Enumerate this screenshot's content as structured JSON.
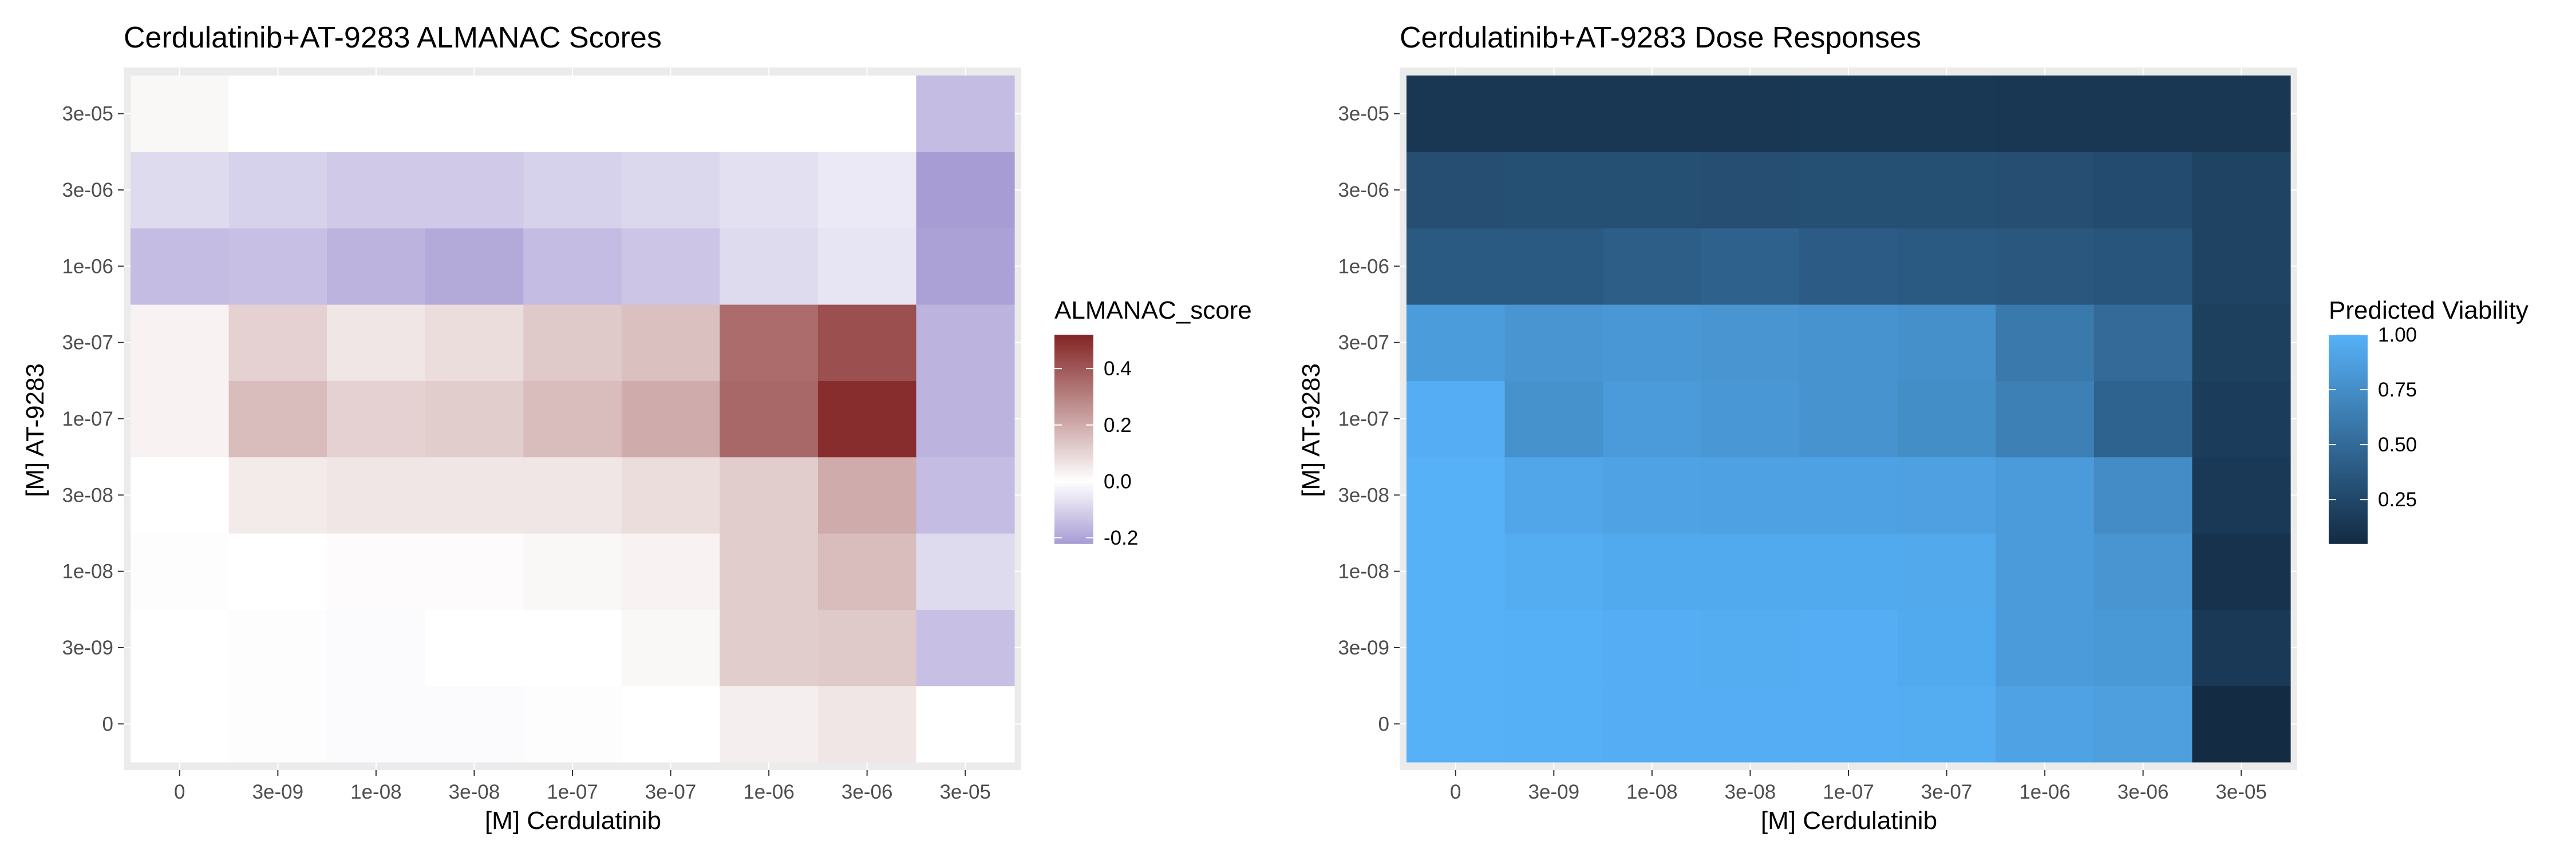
{
  "chart_data": [
    {
      "type": "heatmap",
      "title": "Cerdulatinib+AT-9283 ALMANAC Scores",
      "xlabel": "[M] Cerdulatinib",
      "ylabel": "[M] AT-9283",
      "x_categories": [
        "0",
        "3e-09",
        "1e-08",
        "3e-08",
        "1e-07",
        "3e-07",
        "1e-06",
        "3e-06",
        "3e-05"
      ],
      "y_categories": [
        "0",
        "3e-09",
        "1e-08",
        "3e-08",
        "1e-07",
        "3e-07",
        "1e-06",
        "3e-06",
        "3e-05"
      ],
      "values": [
        [
          0.0,
          -0.005,
          -0.01,
          -0.01,
          -0.005,
          0.0,
          0.04,
          0.06,
          0.0
        ],
        [
          0.0,
          -0.005,
          -0.01,
          0.0,
          0.0,
          0.02,
          0.12,
          0.13,
          -0.14
        ],
        [
          0.005,
          0.0,
          0.01,
          0.01,
          0.02,
          0.03,
          0.12,
          0.16,
          -0.08
        ],
        [
          0.0,
          0.05,
          0.06,
          0.06,
          0.06,
          0.08,
          0.12,
          0.2,
          -0.15
        ],
        [
          0.03,
          0.16,
          0.11,
          0.12,
          0.16,
          0.2,
          0.36,
          0.5,
          -0.17
        ],
        [
          0.03,
          0.11,
          0.06,
          0.08,
          0.13,
          0.15,
          0.35,
          0.42,
          -0.17
        ],
        [
          -0.15,
          -0.14,
          -0.17,
          -0.19,
          -0.15,
          -0.13,
          -0.08,
          -0.06,
          -0.21
        ],
        [
          -0.08,
          -0.1,
          -0.12,
          -0.12,
          -0.1,
          -0.09,
          -0.07,
          -0.05,
          -0.22
        ],
        [
          0.02,
          0.0,
          0.0,
          0.0,
          0.0,
          0.0,
          0.0,
          0.0,
          -0.15
        ]
      ],
      "legend": {
        "title": "ALMANAC_score",
        "ticks": [
          "0.4",
          "0.2",
          "0.0",
          "-0.2"
        ],
        "tick_values": [
          0.4,
          0.2,
          0.0,
          -0.2
        ],
        "range": [
          -0.22,
          0.52
        ],
        "low_color": "#a89cd4",
        "mid_color": "#ffffff",
        "high_color": "#832525"
      },
      "panel_color": "#ebebeb",
      "grid": true
    },
    {
      "type": "heatmap",
      "title": "Cerdulatinib+AT-9283 Dose Responses",
      "xlabel": "[M] Cerdulatinib",
      "ylabel": "[M] AT-9283",
      "x_categories": [
        "0",
        "3e-09",
        "1e-08",
        "3e-08",
        "1e-07",
        "3e-07",
        "1e-06",
        "3e-06",
        "3e-05"
      ],
      "y_categories": [
        "0",
        "3e-09",
        "1e-08",
        "3e-08",
        "1e-07",
        "3e-07",
        "1e-06",
        "3e-06",
        "3e-05"
      ],
      "values": [
        [
          1.0,
          0.99,
          0.98,
          0.98,
          0.98,
          0.97,
          0.9,
          0.87,
          0.05
        ],
        [
          1.0,
          0.99,
          0.98,
          0.97,
          0.98,
          0.95,
          0.84,
          0.83,
          0.15
        ],
        [
          1.0,
          0.97,
          0.95,
          0.95,
          0.95,
          0.94,
          0.84,
          0.8,
          0.1
        ],
        [
          1.0,
          0.92,
          0.9,
          0.89,
          0.89,
          0.88,
          0.84,
          0.74,
          0.15
        ],
        [
          0.98,
          0.78,
          0.84,
          0.82,
          0.79,
          0.75,
          0.65,
          0.45,
          0.17
        ],
        [
          0.85,
          0.8,
          0.82,
          0.8,
          0.79,
          0.76,
          0.6,
          0.5,
          0.2
        ],
        [
          0.38,
          0.38,
          0.41,
          0.43,
          0.4,
          0.38,
          0.36,
          0.35,
          0.22
        ],
        [
          0.3,
          0.31,
          0.31,
          0.3,
          0.31,
          0.31,
          0.3,
          0.28,
          0.22
        ],
        [
          0.13,
          0.13,
          0.13,
          0.13,
          0.14,
          0.14,
          0.13,
          0.13,
          0.13
        ]
      ],
      "legend": {
        "title": "Predicted Viability",
        "ticks": [
          "1.00",
          "0.75",
          "0.50",
          "0.25"
        ],
        "tick_values": [
          1.0,
          0.75,
          0.5,
          0.25
        ],
        "range": [
          0.05,
          1.0
        ],
        "low_color": "#132b43",
        "high_color": "#56b1f7"
      },
      "panel_color": "#ebebeb",
      "grid": true
    }
  ]
}
